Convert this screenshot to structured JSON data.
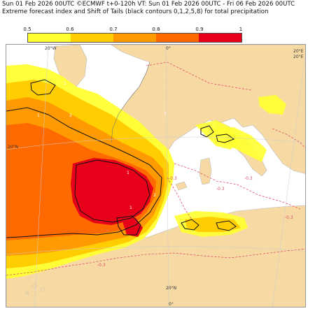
{
  "header": {
    "line1": "Sun 01 Feb 2026 00UTC ©ECMWF t+0-120h  VT: Sun 01 Feb 2026 00UTC - Fri 06 Feb 2026 00UTC",
    "line2": "Extreme forecast index and Shift of Tails (black contours 0,1,2,5,8) for total precipitation"
  },
  "legend": {
    "ticks": [
      "0.5",
      "0.6",
      "0.7",
      "0.8",
      "0.9",
      "1"
    ],
    "colors": [
      "#ffff30",
      "#ffcd00",
      "#ff9b00",
      "#ff6a00",
      "#e8001a"
    ]
  },
  "map": {
    "land_color": "#f7d9a4",
    "sea_color": "#ffffff",
    "coord_labels": {
      "lon_top_left": "20°W",
      "lon_top_mid": "0°",
      "lon_top_right": "20°E",
      "lat_left": "20°N",
      "lat_right": "20°E",
      "lon_bottom_mid": "20°N",
      "lon_bottom": "0°"
    },
    "negative_contour_labels": [
      "-0.3",
      "-0.3",
      "-0.3",
      "-0.3",
      "-0.3"
    ],
    "positive_markers": [
      "1",
      "2",
      "1",
      "1",
      "2",
      "1",
      "1"
    ]
  }
}
